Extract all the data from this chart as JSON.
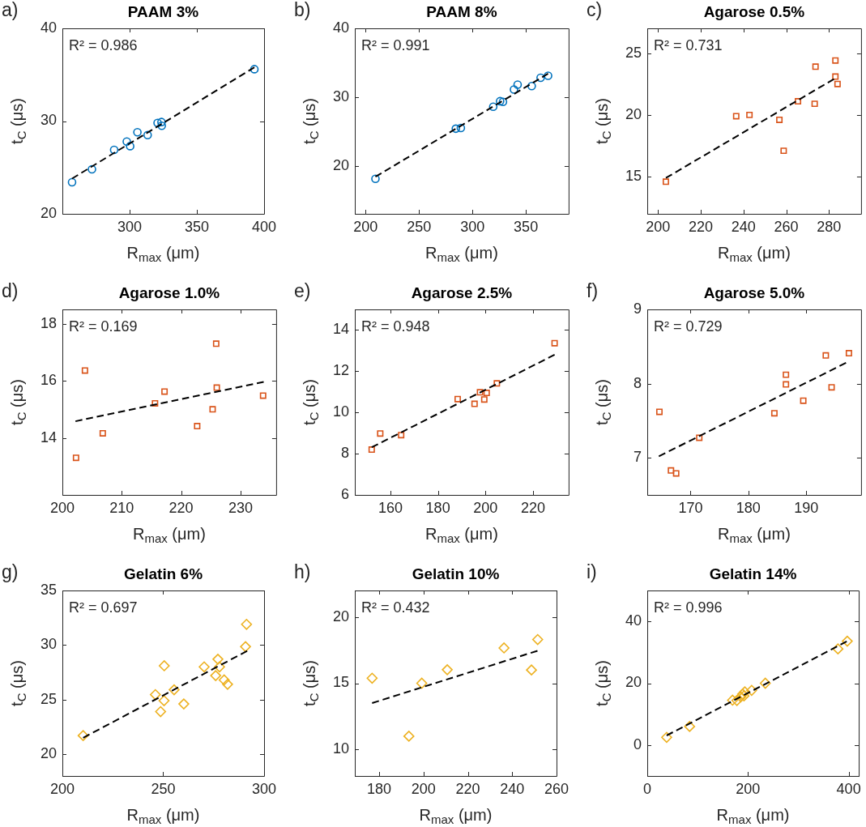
{
  "chart_data": [
    {
      "type": "scatter",
      "title": "PAAM 3%",
      "xlabel": "R$_{max}$ (μm)",
      "ylabel": "t$_{C}$ (μs)",
      "annotations": [
        "a)",
        "R² = 0.986"
      ],
      "xlim": [
        250,
        400
      ],
      "ylim": [
        20,
        40
      ],
      "xticks": [
        300,
        350,
        400
      ],
      "yticks": [
        20,
        30,
        40
      ],
      "series": [
        {
          "type": "scatter",
          "color": "#0072bd",
          "marker": "circle",
          "x": [
            257.2,
            272.0,
            288.5,
            297.9,
            300.4,
            305.8,
            313.4,
            320.8,
            323.7,
            323.9,
            392.8
          ],
          "values": [
            23.4,
            24.8,
            26.9,
            27.8,
            27.3,
            28.8,
            28.5,
            29.8,
            29.9,
            29.5,
            35.6
          ]
        },
        {
          "type": "line",
          "color": "#000000",
          "marker": "none",
          "line_style": "dashed",
          "x": [
            257.2,
            392.8
          ],
          "values": [
            23.8,
            35.8
          ]
        }
      ]
    },
    {
      "type": "scatter",
      "title": "PAAM 8%",
      "xlabel": "R$_{max}$ (μm)",
      "ylabel": "t$_{C}$ (μs)",
      "annotations": [
        "b)",
        "R² = 0.991"
      ],
      "xlim": [
        190,
        390
      ],
      "ylim": [
        13,
        40
      ],
      "xticks": [
        200,
        250,
        300,
        350
      ],
      "yticks": [
        20,
        30,
        40
      ],
      "series": [
        {
          "type": "scatter",
          "color": "#0072bd",
          "marker": "circle",
          "x": [
            209.3,
            284.5,
            289.2,
            319.5,
            325.9,
            328.6,
            338.9,
            342.3,
            355.5,
            363.8,
            370.8
          ],
          "values": [
            18.1,
            25.4,
            25.5,
            28.6,
            29.4,
            29.3,
            31.1,
            31.8,
            31.6,
            32.8,
            33.1
          ]
        },
        {
          "type": "line",
          "color": "#000000",
          "marker": "none",
          "line_style": "dashed",
          "x": [
            209.3,
            370.8
          ],
          "values": [
            18.4,
            33.4
          ]
        }
      ]
    },
    {
      "type": "scatter",
      "title": "Agarose 0.5%",
      "xlabel": "R$_{max}$ (μm)",
      "ylabel": "t$_{C}$ (μs)",
      "annotations": [
        "c)",
        "R² = 0.731"
      ],
      "xlim": [
        195,
        295
      ],
      "ylim": [
        12,
        27
      ],
      "xticks": [
        200,
        220,
        240,
        260,
        280
      ],
      "yticks": [
        15,
        20,
        25
      ],
      "series": [
        {
          "type": "scatter",
          "color": "#d95319",
          "marker": "square",
          "x": [
            203.7,
            236.6,
            242.8,
            256.8,
            258.8,
            265.5,
            273.3,
            273.7,
            283.0,
            283.0,
            284.0
          ],
          "values": [
            14.6,
            19.9,
            20.0,
            19.6,
            17.1,
            21.1,
            20.9,
            23.9,
            24.4,
            23.1,
            22.5
          ]
        },
        {
          "type": "line",
          "color": "#000000",
          "marker": "none",
          "line_style": "dashed",
          "x": [
            203.7,
            282.3
          ],
          "values": [
            14.9,
            22.9
          ]
        }
      ]
    },
    {
      "type": "scatter",
      "title": "Agarose 1.0%",
      "xlabel": "R$_{max}$ (μm)",
      "ylabel": "t$_{C}$ (μs)",
      "annotations": [
        "d)",
        "R² = 0.169"
      ],
      "xlim": [
        200,
        236
      ],
      "ylim": [
        12,
        18.5
      ],
      "xticks": [
        200,
        210,
        220,
        230
      ],
      "yticks": [
        14,
        16,
        18
      ],
      "series": [
        {
          "type": "scatter",
          "color": "#d95319",
          "marker": "square",
          "x": [
            202.3,
            203.8,
            206.8,
            215.6,
            217.2,
            222.7,
            225.3,
            225.9,
            226.0,
            233.8
          ],
          "values": [
            13.3,
            16.36,
            14.16,
            15.21,
            15.62,
            14.41,
            15.0,
            17.3,
            15.76,
            15.48
          ]
        },
        {
          "type": "line",
          "color": "#000000",
          "marker": "none",
          "line_style": "dashed",
          "x": [
            202.2,
            233.9
          ],
          "values": [
            14.58,
            15.96
          ]
        }
      ]
    },
    {
      "type": "scatter",
      "title": "Agarose 2.5%",
      "xlabel": "R$_{max}$ (μm)",
      "ylabel": "t$_{C}$ (μs)",
      "annotations": [
        "e)",
        "R² = 0.948"
      ],
      "xlim": [
        145,
        235
      ],
      "ylim": [
        6,
        15
      ],
      "xticks": [
        160,
        180,
        200,
        220
      ],
      "yticks": [
        6,
        8,
        10,
        12,
        14
      ],
      "series": [
        {
          "type": "scatter",
          "color": "#d95319",
          "marker": "square",
          "x": [
            152.1,
            155.7,
            164.5,
            188.3,
            195.4,
            197.7,
            199.5,
            200.5,
            204.8,
            229.1
          ],
          "values": [
            8.2,
            8.98,
            8.9,
            10.65,
            10.42,
            10.98,
            10.63,
            10.95,
            11.41,
            13.36
          ]
        },
        {
          "type": "line",
          "color": "#000000",
          "marker": "none",
          "line_style": "dashed",
          "x": [
            152.1,
            229.1
          ],
          "values": [
            8.31,
            12.8
          ]
        }
      ]
    },
    {
      "type": "scatter",
      "title": "Agarose 5.0%",
      "xlabel": "R$_{max}$ (μm)",
      "ylabel": "t$_{C}$ (μs)",
      "annotations": [
        "f)",
        "R² = 0.729"
      ],
      "xlim": [
        162.5,
        199.5
      ],
      "ylim": [
        6.5,
        9
      ],
      "xticks": [
        170,
        180,
        190
      ],
      "yticks": [
        7,
        8,
        9
      ],
      "series": [
        {
          "type": "scatter",
          "color": "#d95319",
          "marker": "square",
          "x": [
            164.6,
            166.6,
            167.5,
            171.5,
            184.5,
            186.5,
            186.5,
            189.5,
            193.4,
            194.4,
            197.4
          ],
          "values": [
            7.62,
            6.83,
            6.79,
            7.27,
            7.6,
            8.12,
            7.99,
            7.77,
            8.38,
            7.95,
            8.41
          ]
        },
        {
          "type": "line",
          "color": "#000000",
          "marker": "none",
          "line_style": "dashed",
          "x": [
            164.5,
            196.9
          ],
          "values": [
            7.02,
            8.28
          ]
        }
      ]
    },
    {
      "type": "scatter",
      "title": "Gelatin 6%",
      "xlabel": "R$_{max}$ (μm)",
      "ylabel": "t$_{C}$ (μs)",
      "annotations": [
        "g)",
        "R² = 0.697"
      ],
      "xlim": [
        200,
        300
      ],
      "ylim": [
        18,
        35
      ],
      "xticks": [
        200,
        250,
        300
      ],
      "yticks": [
        20,
        25,
        30,
        35
      ],
      "series": [
        {
          "type": "scatter",
          "color": "#edb120",
          "marker": "diamond",
          "x": [
            210.3,
            246.1,
            248.7,
            250.4,
            250.5,
            255.4,
            260.2,
            270.3,
            276.0,
            277.1,
            277.9,
            280.2,
            281.9,
            290.8,
            291.3
          ],
          "values": [
            21.7,
            25.46,
            23.9,
            24.9,
            28.1,
            25.9,
            24.6,
            28.0,
            27.2,
            28.7,
            28.0,
            26.8,
            26.4,
            29.85,
            31.9
          ]
        },
        {
          "type": "line",
          "color": "#000000",
          "marker": "none",
          "line_style": "dashed",
          "x": [
            210.3,
            291.6
          ],
          "values": [
            21.5,
            29.46
          ]
        }
      ]
    },
    {
      "type": "scatter",
      "title": "Gelatin 10%",
      "xlabel": "R$_{max}$ (μm)",
      "ylabel": "t$_{C}$ (μs)",
      "annotations": [
        "h)",
        "R² = 0.432"
      ],
      "xlim": [
        169,
        260
      ],
      "ylim": [
        8,
        22
      ],
      "xticks": [
        180,
        200,
        220,
        240,
        260
      ],
      "yticks": [
        10,
        15,
        20
      ],
      "series": [
        {
          "type": "scatter",
          "color": "#edb120",
          "marker": "diamond",
          "x": [
            176.8,
            193.4,
            199.2,
            210.7,
            236.3,
            248.7,
            251.5
          ],
          "values": [
            15.38,
            11.0,
            15.0,
            16.02,
            17.66,
            16.0,
            18.3
          ]
        },
        {
          "type": "line",
          "color": "#000000",
          "marker": "none",
          "line_style": "dashed",
          "x": [
            176.8,
            251.4
          ],
          "values": [
            13.5,
            17.45
          ]
        }
      ]
    },
    {
      "type": "scatter",
      "title": "Gelatin 14%",
      "xlabel": "R$_{max}$ (μm)",
      "ylabel": "t$_{C}$ (μs)",
      "annotations": [
        "i)",
        "R² = 0.996"
      ],
      "xlim": [
        0,
        420
      ],
      "ylim": [
        -10,
        50
      ],
      "xticks": [
        0,
        200,
        400
      ],
      "yticks": [
        0,
        20,
        40
      ],
      "series": [
        {
          "type": "scatter",
          "color": "#edb120",
          "marker": "diamond",
          "x": [
            38.5,
            84.1,
            169.3,
            178,
            185.6,
            189.4,
            192,
            193.7,
            207.3,
            234.4,
            378.7,
            397.2
          ],
          "values": [
            2.5,
            6.0,
            14.5,
            14.4,
            15.6,
            16.5,
            15.9,
            17.2,
            17.7,
            20.0,
            31.1,
            33.6
          ]
        },
        {
          "type": "line",
          "color": "#000000",
          "marker": "none",
          "line_style": "dashed",
          "x": [
            38.5,
            396.1
          ],
          "values": [
            3.1,
            33.5
          ]
        }
      ]
    }
  ]
}
